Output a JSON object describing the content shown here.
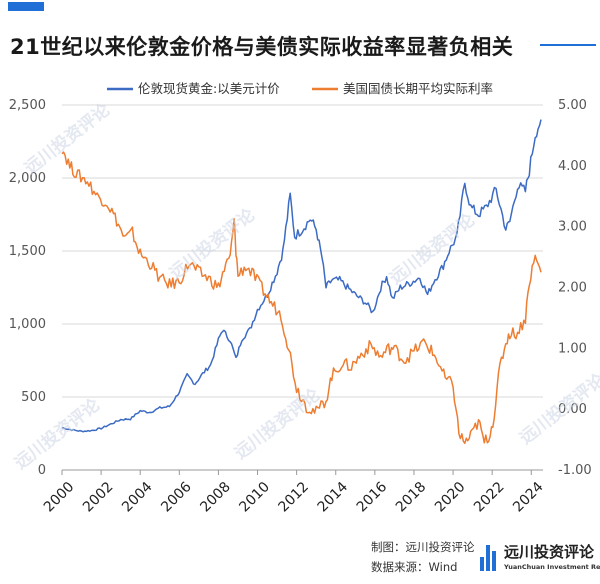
{
  "title": "21世纪以来伦敦金价格与美债实际收益率显著负相关",
  "footer": {
    "maker": "制图：远川投资评论",
    "source": "数据来源：Wind"
  },
  "brand": {
    "name": "远川投资评论",
    "sub": "YuanChuan Investment Review"
  },
  "watermark": "远川投资评论",
  "colors": {
    "gold": "#3c6bc4",
    "yield": "#ed7d31",
    "accent": "#1f6fd6"
  },
  "chart_data": {
    "type": "line",
    "x_ticks": [
      "2000",
      "2002",
      "2004",
      "2006",
      "2008",
      "2010",
      "2012",
      "2014",
      "2016",
      "2018",
      "2020",
      "2022",
      "2024"
    ],
    "y_left_ticks": [
      "0",
      "500",
      "1,000",
      "1,500",
      "2,000",
      "2,500"
    ],
    "y_right_ticks": [
      "-1.00",
      "0.00",
      "1.00",
      "2.00",
      "3.00",
      "4.00",
      "5.00"
    ],
    "ylim_left": [
      0,
      2500
    ],
    "ylim_right": [
      -1,
      5
    ],
    "xlim": [
      2000,
      2024.6
    ],
    "series": [
      {
        "name": "伦敦现货黄金:以美元计价",
        "axis": "left",
        "color": "#3c6bc4",
        "x": [
          2000.0,
          2000.5,
          2001.0,
          2001.5,
          2002.0,
          2002.5,
          2003.0,
          2003.5,
          2004.0,
          2004.5,
          2005.0,
          2005.5,
          2006.0,
          2006.4,
          2006.8,
          2007.2,
          2007.6,
          2008.0,
          2008.2,
          2008.6,
          2008.9,
          2009.2,
          2009.6,
          2010.0,
          2010.5,
          2011.0,
          2011.3,
          2011.67,
          2011.9,
          2012.3,
          2012.7,
          2013.0,
          2013.3,
          2013.5,
          2013.8,
          2014.2,
          2014.6,
          2015.0,
          2015.5,
          2015.9,
          2016.3,
          2016.6,
          2016.9,
          2017.3,
          2017.8,
          2018.3,
          2018.7,
          2019.0,
          2019.5,
          2019.8,
          2020.2,
          2020.6,
          2020.9,
          2021.3,
          2021.7,
          2022.2,
          2022.7,
          2022.9,
          2023.3,
          2023.7,
          2023.9,
          2024.2,
          2024.5
        ],
        "y": [
          290,
          275,
          265,
          270,
          285,
          315,
          345,
          350,
          405,
          395,
          425,
          435,
          535,
          650,
          590,
          660,
          720,
          890,
          960,
          890,
          760,
          900,
          960,
          1100,
          1200,
          1360,
          1500,
          1880,
          1600,
          1650,
          1720,
          1650,
          1450,
          1250,
          1300,
          1300,
          1250,
          1200,
          1150,
          1080,
          1250,
          1330,
          1170,
          1250,
          1280,
          1320,
          1200,
          1290,
          1400,
          1500,
          1600,
          1970,
          1800,
          1750,
          1800,
          1920,
          1650,
          1700,
          1950,
          1910,
          2050,
          2300,
          2400
        ]
      },
      {
        "name": "美国国债长期平均实际利率",
        "axis": "right",
        "color": "#ed7d31",
        "x": [
          2000.0,
          2000.4,
          2000.8,
          2001.3,
          2001.8,
          2002.3,
          2002.8,
          2003.2,
          2003.6,
          2004.0,
          2004.5,
          2005.0,
          2005.5,
          2006.0,
          2006.5,
          2007.0,
          2007.5,
          2008.0,
          2008.3,
          2008.6,
          2008.8,
          2008.9,
          2009.0,
          2009.4,
          2009.8,
          2010.3,
          2010.7,
          2011.2,
          2011.6,
          2012.0,
          2012.5,
          2013.0,
          2013.5,
          2013.8,
          2014.3,
          2014.8,
          2015.3,
          2015.8,
          2016.3,
          2016.7,
          2017.0,
          2017.5,
          2018.0,
          2018.5,
          2018.8,
          2019.2,
          2019.6,
          2020.0,
          2020.3,
          2020.6,
          2020.9,
          2021.3,
          2021.6,
          2021.9,
          2022.1,
          2022.4,
          2022.7,
          2022.9,
          2023.3,
          2023.7,
          2023.9,
          2024.2,
          2024.5
        ],
        "y": [
          4.3,
          4.0,
          3.85,
          3.75,
          3.5,
          3.4,
          3.1,
          2.8,
          2.9,
          2.55,
          2.4,
          2.15,
          2.05,
          2.1,
          2.4,
          2.25,
          2.15,
          2.0,
          2.3,
          2.5,
          3.1,
          2.6,
          2.2,
          2.35,
          2.2,
          1.95,
          1.75,
          1.55,
          1.0,
          0.35,
          0.05,
          -0.05,
          0.15,
          0.55,
          0.75,
          0.7,
          0.9,
          1.05,
          0.85,
          1.0,
          1.0,
          0.8,
          0.95,
          1.1,
          1.0,
          0.8,
          0.5,
          0.4,
          -0.4,
          -0.55,
          -0.45,
          -0.2,
          -0.55,
          -0.4,
          -0.1,
          0.7,
          1.1,
          1.25,
          1.25,
          1.5,
          2.1,
          2.5,
          2.25
        ]
      }
    ]
  }
}
